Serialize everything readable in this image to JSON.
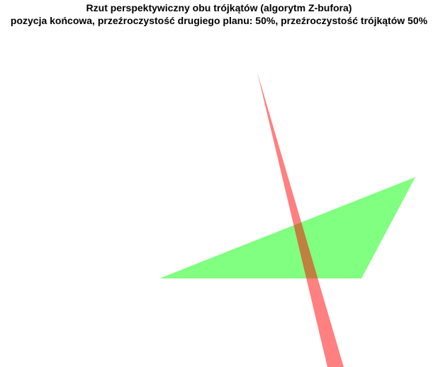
{
  "figure": {
    "title_line1": "Rzut perspektywiczny obu trójkątów (algorytm Z-bufora)",
    "title_line2": "pozycja końcowa, przeźroczystość drugiego planu: 50%, przeźroczystość trójkątów 50%"
  },
  "colors": {
    "background": "#ffffff",
    "green_triangle": "#80ff80",
    "red_triangle": "#ff8080",
    "overlap": "#c08040"
  }
}
